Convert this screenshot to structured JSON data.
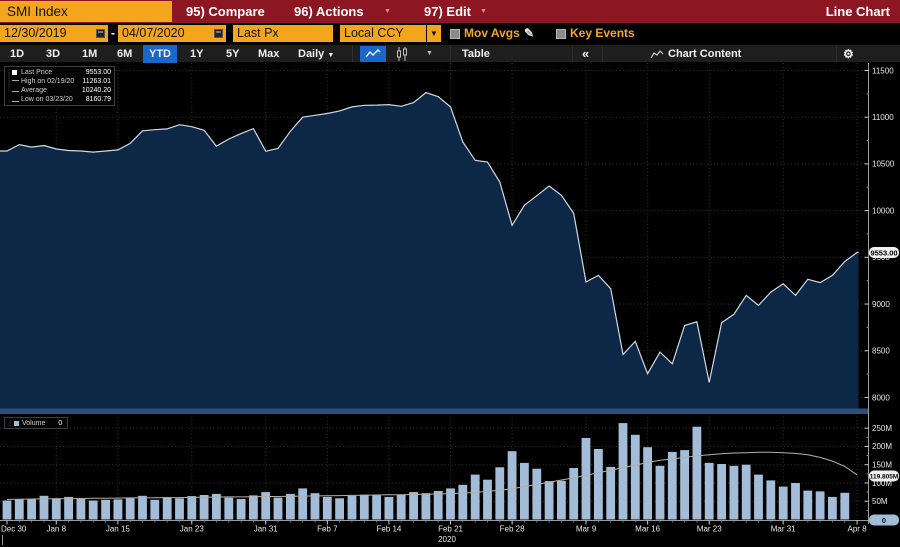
{
  "title_bar": {
    "ticker": "SMI Index",
    "items": [
      {
        "label": "95) Compare",
        "caret": false
      },
      {
        "label": "96) Actions",
        "caret": true
      },
      {
        "label": "97) Edit",
        "caret": true
      }
    ],
    "right_label": "Line Chart"
  },
  "settings_bar": {
    "start_date": "12/30/2019",
    "end_date": "04/07/2020",
    "separator": "-",
    "field": "Last Px",
    "currency": "Local CCY",
    "mov_avgs_label": "Mov Avgs",
    "key_events_label": "Key Events"
  },
  "toolbar": {
    "ranges": [
      "1D",
      "3D",
      "1M",
      "6M",
      "YTD",
      "1Y",
      "5Y",
      "Max"
    ],
    "selected_range": "YTD",
    "period_label": "Daily",
    "table_label": "Table",
    "collapse_label": "«",
    "chart_content_label": "Chart Content"
  },
  "price_legend": {
    "rows": [
      {
        "marker": "last",
        "label": "Last Price",
        "value": "9553.00"
      },
      {
        "marker": "high",
        "label": "High on 02/19/20",
        "value": "11263.01"
      },
      {
        "marker": "avg",
        "label": "Average",
        "value": "10240.20"
      },
      {
        "marker": "low",
        "label": "Low on 03/23/20",
        "value": "8160.79"
      }
    ]
  },
  "volume_legend": {
    "label": "Volume",
    "value": "0"
  },
  "badges": {
    "last_price": "9553.00",
    "avg_volume": "119.805M",
    "current_volume": "0"
  },
  "colors": {
    "header_red": "#8c1722",
    "accent_orange": "#f3a61b",
    "amber_text": "#f5a623",
    "selected_blue": "#1b66c9",
    "area_fill": "#0d2846",
    "price_line": "#cfd9e4",
    "volume_bar": "#a3bdd8",
    "avg_volume_line": "#b5b0a5",
    "grid": "#343434",
    "axis": "#9c9c9c",
    "badge_bg": "#f0f0f0"
  },
  "chart_data": {
    "type": "line+bar",
    "title": "SMI Index YTD price with volume",
    "legend_position": "top-left",
    "grid": true,
    "price_axis_ticks": [
      11500,
      11000,
      10500,
      10000,
      9500,
      9000,
      8500,
      8000
    ],
    "volume_axis_ticks_m": [
      250,
      200,
      150,
      100,
      50
    ],
    "x_ticks": [
      {
        "label": "Dec 30",
        "i": 0
      },
      {
        "label": "Jan 8",
        "i": 4
      },
      {
        "label": "Jan 15",
        "i": 9
      },
      {
        "label": "Jan 23",
        "i": 15
      },
      {
        "label": "Jan 31",
        "i": 21
      },
      {
        "label": "Feb 7",
        "i": 26
      },
      {
        "label": "Feb 14",
        "i": 31
      },
      {
        "label": "Feb 21",
        "i": 36
      },
      {
        "label": "Feb 28",
        "i": 41
      },
      {
        "label": "Mar 9",
        "i": 47
      },
      {
        "label": "Mar 16",
        "i": 52
      },
      {
        "label": "Mar 23",
        "i": 57
      },
      {
        "label": "Mar 31",
        "i": 63
      },
      {
        "label": "Apr 8",
        "i": 69
      }
    ],
    "year_label": "2020",
    "last_price": 9553.0,
    "high": 11263.01,
    "average": 10240.2,
    "low": 8160.79,
    "price": [
      10638,
      10707,
      10680,
      10697,
      10660,
      10644,
      10638,
      10627,
      10638,
      10650,
      10720,
      10854,
      10866,
      10875,
      10920,
      10898,
      10860,
      10690,
      10767,
      10824,
      10878,
      10636,
      10665,
      10850,
      11000,
      11020,
      11040,
      11067,
      11110,
      11128,
      11130,
      11135,
      11117,
      11156,
      11263,
      11220,
      11110,
      10735,
      10539,
      10520,
      10306,
      9843,
      10057,
      10160,
      10264,
      10164,
      9970,
      9236,
      9307,
      9164,
      8460,
      8600,
      8254,
      8486,
      8360,
      8770,
      8810,
      8161,
      8800,
      8890,
      9092,
      8985,
      9128,
      9217,
      9092,
      9265,
      9229,
      9307,
      9455,
      9553
    ],
    "volume_m": [
      52,
      56,
      55,
      65,
      58,
      62,
      56,
      52,
      54,
      55,
      60,
      65,
      54,
      61,
      58,
      64,
      67,
      70,
      60,
      56,
      66,
      75,
      60,
      70,
      85,
      72,
      62,
      58,
      65,
      68,
      66,
      62,
      68,
      75,
      72,
      78,
      85,
      95,
      123,
      109,
      143,
      187,
      155,
      139,
      105,
      106,
      141,
      223,
      193,
      144,
      264,
      232,
      198,
      147,
      185,
      190,
      254,
      155,
      152,
      147,
      150,
      123,
      107,
      90,
      100,
      79,
      77,
      62,
      73,
      0
    ],
    "avg_volume_m": [
      55,
      55.5,
      56,
      56.5,
      57,
      57,
      57.5,
      58,
      58,
      58.5,
      59,
      59,
      59.5,
      60,
      60,
      60.5,
      61,
      61.5,
      62,
      62,
      62.5,
      63,
      63,
      63.5,
      64,
      64.5,
      65,
      65.5,
      66,
      66.5,
      67,
      67.5,
      68,
      68.5,
      69,
      70,
      71,
      72.5,
      74,
      77,
      80,
      84,
      90,
      96,
      102,
      108,
      114,
      121,
      128,
      135,
      142,
      149,
      156,
      162,
      166,
      170,
      174,
      177,
      180,
      182,
      183,
      184,
      184,
      183,
      181,
      177,
      170,
      160,
      145,
      122
    ]
  }
}
